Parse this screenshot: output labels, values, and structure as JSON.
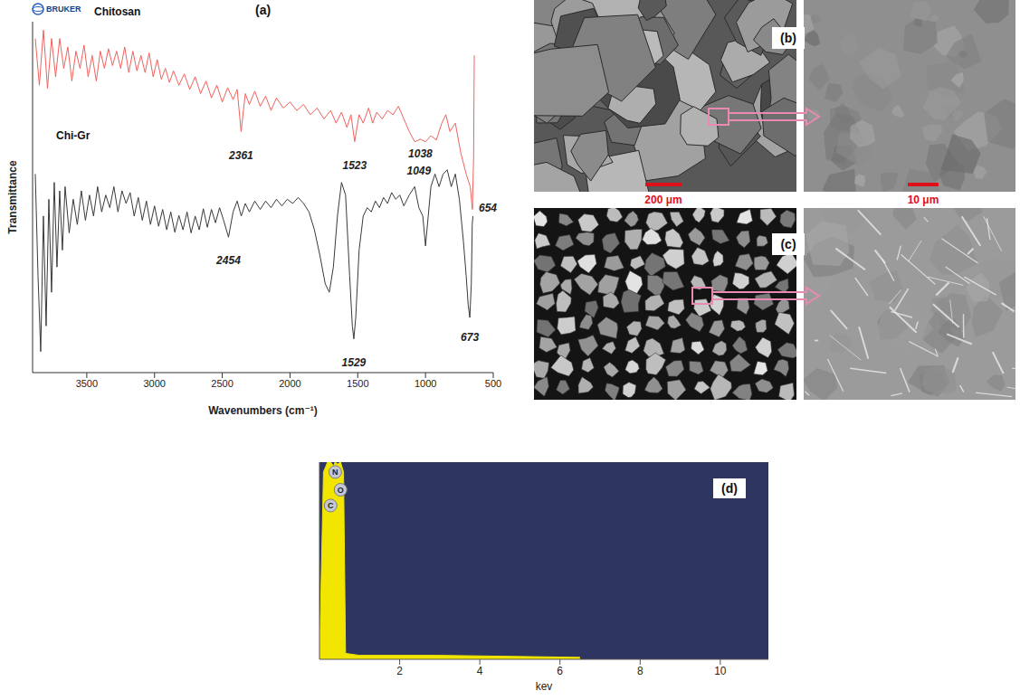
{
  "chart_data": [
    {
      "type": "line",
      "panel": "(a)",
      "logo": "BRUKER",
      "x_label": "Wavenumbers (cm⁻¹)",
      "y_label": "Transmittance",
      "xlim": [
        3900,
        500
      ],
      "xticks": [
        3500,
        3000,
        2500,
        2000,
        1500,
        1000,
        500
      ],
      "ylim": [
        0,
        100
      ],
      "yticks": [],
      "tick_labels": "x",
      "grid": false,
      "series": [
        {
          "name": "Chitosan",
          "color": "#f0625e",
          "x": [
            3880,
            3850,
            3820,
            3790,
            3760,
            3730,
            3700,
            3670,
            3640,
            3610,
            3580,
            3550,
            3520,
            3490,
            3460,
            3430,
            3400,
            3370,
            3340,
            3310,
            3280,
            3250,
            3220,
            3190,
            3160,
            3130,
            3100,
            3070,
            3040,
            3010,
            2980,
            2950,
            2920,
            2890,
            2860,
            2820,
            2780,
            2740,
            2700,
            2660,
            2620,
            2580,
            2540,
            2500,
            2460,
            2420,
            2390,
            2361,
            2330,
            2300,
            2260,
            2220,
            2180,
            2140,
            2100,
            2050,
            2000,
            1950,
            1900,
            1850,
            1800,
            1750,
            1700,
            1660,
            1620,
            1580,
            1550,
            1523,
            1490,
            1460,
            1420,
            1390,
            1360,
            1320,
            1280,
            1240,
            1200,
            1160,
            1120,
            1080,
            1038,
            1000,
            960,
            920,
            880,
            850,
            820,
            780,
            740,
            700,
            670,
            654,
            645,
            640
          ],
          "values": [
            95.2,
            81.9,
            97.6,
            81.0,
            95.2,
            84.3,
            95.2,
            86.7,
            92.8,
            83.1,
            91.6,
            86.7,
            93.3,
            84.3,
            90.4,
            83.1,
            91.6,
            86.7,
            92.3,
            87.5,
            91.6,
            86.7,
            92.8,
            85.5,
            91.6,
            86.0,
            90.4,
            85.5,
            91.1,
            84.3,
            89.2,
            83.6,
            86.7,
            82.7,
            86.0,
            81.9,
            85.1,
            80.7,
            84.3,
            79.5,
            83.1,
            78.3,
            81.9,
            77.1,
            81.2,
            77.8,
            80.7,
            68.7,
            79.5,
            76.4,
            80.2,
            75.9,
            78.8,
            74.7,
            78.3,
            75.4,
            77.1,
            74.7,
            76.4,
            73.5,
            75.4,
            72.3,
            74.7,
            71.1,
            74.2,
            69.9,
            73.5,
            65.8,
            73.5,
            71.1,
            75.4,
            71.1,
            74.2,
            72.3,
            74.7,
            73.5,
            75.9,
            72.3,
            68.7,
            65.8,
            66.5,
            65.8,
            67.5,
            66.3,
            71.1,
            73.5,
            68.7,
            71.1,
            62.7,
            56.6,
            53.0,
            46.5,
            61.4,
            90.4
          ]
        },
        {
          "name": "Chi-Gr",
          "color": "#3a3a3a",
          "x": [
            3880,
            3860,
            3840,
            3820,
            3800,
            3780,
            3760,
            3740,
            3720,
            3700,
            3680,
            3660,
            3630,
            3600,
            3570,
            3540,
            3510,
            3480,
            3450,
            3420,
            3390,
            3360,
            3330,
            3300,
            3270,
            3240,
            3210,
            3180,
            3150,
            3120,
            3090,
            3060,
            3030,
            3000,
            2970,
            2940,
            2910,
            2880,
            2850,
            2820,
            2790,
            2760,
            2730,
            2700,
            2670,
            2640,
            2610,
            2580,
            2550,
            2520,
            2490,
            2454,
            2420,
            2390,
            2360,
            2330,
            2300,
            2260,
            2220,
            2180,
            2140,
            2100,
            2060,
            2020,
            1980,
            1940,
            1900,
            1860,
            1820,
            1780,
            1740,
            1710,
            1680,
            1650,
            1620,
            1590,
            1560,
            1540,
            1529,
            1515,
            1490,
            1460,
            1430,
            1400,
            1370,
            1340,
            1310,
            1280,
            1250,
            1220,
            1190,
            1160,
            1120,
            1080,
            1049,
            1020,
            1000,
            980,
            960,
            930,
            900,
            870,
            840,
            810,
            780,
            750,
            720,
            700,
            685,
            673,
            662,
            655,
            650
          ],
          "values": [
            56.6,
            27.7,
            6.0,
            44.6,
            13.3,
            49.4,
            22.9,
            54.2,
            30.1,
            51.8,
            34.9,
            53.0,
            39.8,
            49.4,
            42.2,
            51.8,
            43.4,
            50.6,
            44.6,
            53.0,
            45.8,
            50.6,
            47.0,
            53.0,
            45.8,
            51.8,
            48.2,
            51.3,
            44.6,
            49.9,
            43.4,
            48.9,
            42.2,
            47.5,
            41.7,
            46.5,
            40.7,
            45.8,
            40.0,
            44.8,
            40.7,
            45.8,
            39.8,
            44.6,
            40.7,
            46.7,
            41.4,
            46.5,
            42.7,
            47.0,
            43.4,
            38.6,
            45.8,
            48.9,
            44.6,
            48.2,
            45.8,
            48.9,
            46.5,
            48.9,
            47.0,
            49.4,
            47.5,
            49.4,
            48.2,
            49.9,
            48.2,
            45.8,
            40.7,
            33.5,
            25.3,
            22.9,
            30.1,
            44.6,
            54.2,
            50.6,
            27.7,
            13.3,
            9.6,
            15.7,
            34.9,
            44.6,
            47.0,
            45.8,
            48.9,
            47.0,
            49.9,
            48.2,
            51.3,
            49.4,
            50.6,
            47.5,
            50.6,
            53.0,
            47.0,
            44.6,
            36.1,
            44.6,
            53.0,
            56.6,
            53.0,
            56.6,
            57.8,
            53.0,
            56.6,
            49.4,
            37.3,
            27.7,
            19.3,
            15.7,
            25.3,
            42.2,
            44.6
          ]
        }
      ],
      "annotations": [
        {
          "text": "2361",
          "x": 2361,
          "y": 62
        },
        {
          "text": "1523",
          "x": 1523,
          "y": 59
        },
        {
          "text": "1038",
          "x": 1038,
          "y": 62.5
        },
        {
          "text": "654",
          "x": 540,
          "y": 47
        },
        {
          "text": "2454",
          "x": 2454,
          "y": 32
        },
        {
          "text": "1529",
          "x": 1529,
          "y": 3
        },
        {
          "text": "1049",
          "x": 1049,
          "y": 57.5
        },
        {
          "text": "673",
          "x": 673,
          "y": 10
        }
      ]
    },
    {
      "type": "area",
      "panel": "(d)",
      "x_label": "kev",
      "xlim": [
        0,
        11.2
      ],
      "xticks": [
        2,
        4,
        6,
        8,
        10
      ],
      "ylim": [
        0,
        100
      ],
      "yticks": [],
      "tick_labels": "x",
      "grid": false,
      "series": [
        {
          "color": "#f2e600",
          "x": [
            0,
            0.1,
            0.2,
            0.277,
            0.35,
            0.392,
            0.45,
            0.525,
            0.6,
            0.65,
            1,
            3,
            6.5
          ],
          "values": [
            0,
            95,
            100,
            100,
            98,
            100,
            99,
            100,
            95,
            3,
            2,
            2,
            1
          ]
        }
      ],
      "annotations": [
        {
          "text": "C",
          "x": 0.277,
          "y": 78
        },
        {
          "text": "N",
          "x": 0.392,
          "y": 95
        },
        {
          "text": "O",
          "x": 0.525,
          "y": 86
        }
      ]
    }
  ],
  "images": [
    {
      "panel": "(b)",
      "scale_bars": [
        "200 μm",
        "10 μm"
      ]
    },
    {
      "panel": "(c)"
    }
  ]
}
